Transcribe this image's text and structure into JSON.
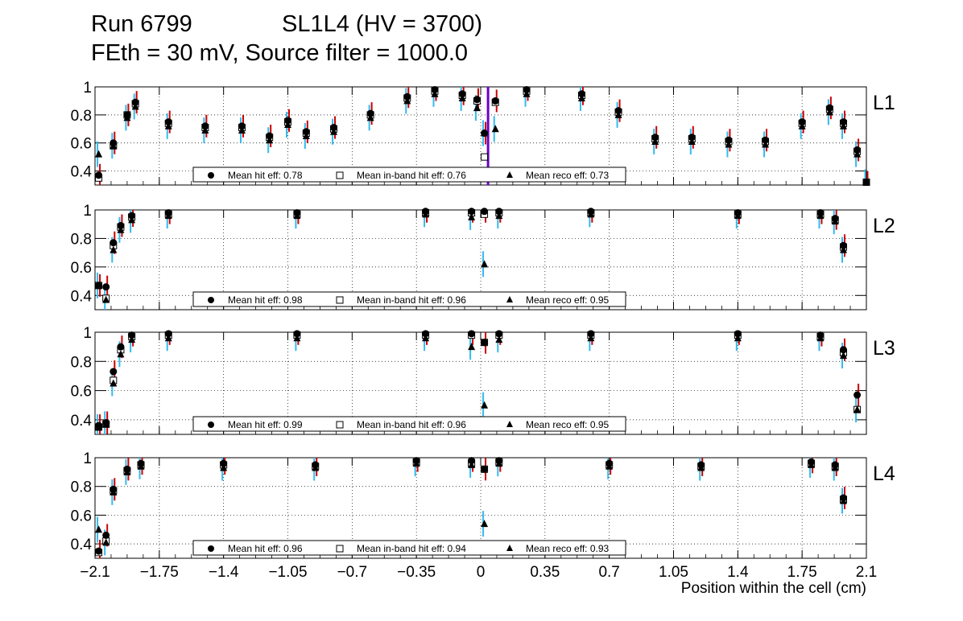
{
  "header": {
    "run_label": "Run 6799",
    "chamber_label": "SL1L4 (HV = 3700)",
    "settings_label": "FEth = 30 mV, Source filter = 1000.0"
  },
  "colors": {
    "hit_error": "#cc0000",
    "reco_error": "#33bbee",
    "highlight": "#6a00c8",
    "grid": "#000000"
  },
  "chart_data": {
    "type": "scatter",
    "xlabel": "Position within the cell (cm)",
    "xlim": [
      -2.1,
      2.1
    ],
    "ylim": [
      0.3,
      1.0
    ],
    "x_ticks": [
      "−2.1",
      "−1.75",
      "−1.4",
      "−1.05",
      "−0.7",
      "−0.35",
      "0",
      "0.35",
      "0.7",
      "1.05",
      "1.4",
      "1.75",
      "2.1"
    ],
    "x_tick_values": [
      -2.1,
      -1.75,
      -1.4,
      -1.05,
      -0.7,
      -0.35,
      0,
      0.35,
      0.7,
      1.05,
      1.4,
      1.75,
      2.1
    ],
    "y_ticks": [
      "0.4",
      "0.6",
      "0.8",
      "1"
    ],
    "y_tick_values": [
      0.4,
      0.6,
      0.8,
      1.0
    ],
    "grid": true,
    "legend_labels": {
      "hit": "Mean hit  eff:",
      "inband": "Mean in-band hit eff:",
      "reco": "Mean reco eff:"
    },
    "panels": [
      {
        "name": "L1",
        "mean_hit_eff": "0.78",
        "mean_inband_eff": "0.76",
        "mean_reco_eff": "0.73",
        "points": [
          {
            "x": -2.08,
            "hit": 0.37,
            "inband": 0.35,
            "reco": 0.52
          },
          {
            "x": -2.0,
            "hit": 0.6,
            "inband": 0.58,
            "reco": 0.58
          },
          {
            "x": -1.925,
            "hit": 0.8,
            "inband": 0.8,
            "reco": 0.78
          },
          {
            "x": -1.88,
            "hit": 0.89,
            "inband": 0.88,
            "reco": 0.86
          },
          {
            "x": -1.7,
            "hit": 0.75,
            "inband": 0.74,
            "reco": 0.72
          },
          {
            "x": -1.5,
            "hit": 0.72,
            "inband": 0.71,
            "reco": 0.69
          },
          {
            "x": -1.3,
            "hit": 0.72,
            "inband": 0.71,
            "reco": 0.69
          },
          {
            "x": -1.15,
            "hit": 0.65,
            "inband": 0.64,
            "reco": 0.62
          },
          {
            "x": -1.05,
            "hit": 0.76,
            "inband": 0.75,
            "reco": 0.73
          },
          {
            "x": -0.95,
            "hit": 0.68,
            "inband": 0.67,
            "reco": 0.65
          },
          {
            "x": -0.8,
            "hit": 0.71,
            "inband": 0.7,
            "reco": 0.68
          },
          {
            "x": -0.6,
            "hit": 0.81,
            "inband": 0.8,
            "reco": 0.78
          },
          {
            "x": -0.4,
            "hit": 0.93,
            "inband": 0.92,
            "reco": 0.9
          },
          {
            "x": -0.25,
            "hit": 0.98,
            "inband": 0.97,
            "reco": 0.95
          },
          {
            "x": -0.1,
            "hit": 0.95,
            "inband": 0.94,
            "reco": 0.92
          },
          {
            "x": -0.02,
            "hit": 0.91,
            "inband": 0.9,
            "reco": 0.85
          },
          {
            "x": 0.02,
            "hit": 0.67,
            "inband": 0.5,
            "reco": 0.67
          },
          {
            "x": 0.08,
            "hit": 0.9,
            "inband": 0.89,
            "reco": 0.7
          },
          {
            "x": 0.25,
            "hit": 0.98,
            "inband": 0.97,
            "reco": 0.95
          },
          {
            "x": 0.55,
            "hit": 0.95,
            "inband": 0.94,
            "reco": 0.92
          },
          {
            "x": 0.75,
            "hit": 0.83,
            "inband": 0.82,
            "reco": 0.8
          },
          {
            "x": 0.95,
            "hit": 0.64,
            "inband": 0.63,
            "reco": 0.61
          },
          {
            "x": 1.15,
            "hit": 0.64,
            "inband": 0.63,
            "reco": 0.61
          },
          {
            "x": 1.35,
            "hit": 0.62,
            "inband": 0.61,
            "reco": 0.59
          },
          {
            "x": 1.55,
            "hit": 0.62,
            "inband": 0.61,
            "reco": 0.59
          },
          {
            "x": 1.75,
            "hit": 0.75,
            "inband": 0.74,
            "reco": 0.72
          },
          {
            "x": 1.9,
            "hit": 0.85,
            "inband": 0.84,
            "reco": 0.82
          },
          {
            "x": 1.975,
            "hit": 0.75,
            "inband": 0.74,
            "reco": 0.72
          },
          {
            "x": 2.05,
            "hit": 0.55,
            "inband": 0.54,
            "reco": 0.52
          },
          {
            "x": 2.1,
            "hit": 0.32,
            "inband": 0.32,
            "reco": 0.32
          }
        ]
      },
      {
        "name": "L2",
        "mean_hit_eff": "0.98",
        "mean_inband_eff": "0.96",
        "mean_reco_eff": "0.95",
        "points": [
          {
            "x": -2.08,
            "hit": 0.47,
            "inband": 0.47,
            "reco": 0.47
          },
          {
            "x": -2.04,
            "hit": 0.46,
            "inband": 0.38,
            "reco": 0.37
          },
          {
            "x": -2.0,
            "hit": 0.77,
            "inband": 0.75,
            "reco": 0.72
          },
          {
            "x": -1.96,
            "hit": 0.89,
            "inband": 0.88,
            "reco": 0.86
          },
          {
            "x": -1.9,
            "hit": 0.96,
            "inband": 0.95,
            "reco": 0.93
          },
          {
            "x": -1.7,
            "hit": 0.98,
            "inband": 0.97,
            "reco": 0.96
          },
          {
            "x": -1.0,
            "hit": 0.98,
            "inband": 0.97,
            "reco": 0.96
          },
          {
            "x": -0.3,
            "hit": 0.99,
            "inband": 0.98,
            "reco": 0.97
          },
          {
            "x": -0.05,
            "hit": 0.99,
            "inband": 0.98,
            "reco": 0.95
          },
          {
            "x": 0.02,
            "hit": 0.99,
            "inband": 0.97,
            "reco": 0.62
          },
          {
            "x": 0.1,
            "hit": 0.99,
            "inband": 0.98,
            "reco": 0.96
          },
          {
            "x": 0.6,
            "hit": 0.99,
            "inband": 0.98,
            "reco": 0.97
          },
          {
            "x": 1.4,
            "hit": 0.98,
            "inband": 0.97,
            "reco": 0.96
          },
          {
            "x": 1.85,
            "hit": 0.98,
            "inband": 0.97,
            "reco": 0.96
          },
          {
            "x": 1.93,
            "hit": 0.94,
            "inband": 0.93,
            "reco": 0.92
          },
          {
            "x": 1.975,
            "hit": 0.75,
            "inband": 0.74,
            "reco": 0.72
          }
        ]
      },
      {
        "name": "L3",
        "mean_hit_eff": "0.99",
        "mean_inband_eff": "0.96",
        "mean_reco_eff": "0.95",
        "points": [
          {
            "x": -2.08,
            "hit": 0.36,
            "inband": 0.35,
            "reco": 0.35
          },
          {
            "x": -2.04,
            "hit": 0.38,
            "inband": 0.37,
            "reco": 0.37
          },
          {
            "x": -2.0,
            "hit": 0.73,
            "inband": 0.67,
            "reco": 0.65
          },
          {
            "x": -1.96,
            "hit": 0.9,
            "inband": 0.88,
            "reco": 0.85
          },
          {
            "x": -1.9,
            "hit": 0.98,
            "inband": 0.97,
            "reco": 0.95
          },
          {
            "x": -1.7,
            "hit": 0.99,
            "inband": 0.98,
            "reco": 0.96
          },
          {
            "x": -1.0,
            "hit": 0.99,
            "inband": 0.98,
            "reco": 0.96
          },
          {
            "x": -0.3,
            "hit": 0.99,
            "inband": 0.98,
            "reco": 0.96
          },
          {
            "x": -0.05,
            "hit": 0.99,
            "inband": 0.98,
            "reco": 0.9
          },
          {
            "x": 0.02,
            "hit": 0.93,
            "inband": 0.93,
            "reco": 0.5
          },
          {
            "x": 0.1,
            "hit": 0.99,
            "inband": 0.98,
            "reco": 0.95
          },
          {
            "x": 0.6,
            "hit": 0.99,
            "inband": 0.98,
            "reco": 0.96
          },
          {
            "x": 1.4,
            "hit": 0.99,
            "inband": 0.98,
            "reco": 0.96
          },
          {
            "x": 1.85,
            "hit": 0.98,
            "inband": 0.97,
            "reco": 0.96
          },
          {
            "x": 1.975,
            "hit": 0.88,
            "inband": 0.86,
            "reco": 0.84
          },
          {
            "x": 2.05,
            "hit": 0.57,
            "inband": 0.47,
            "reco": 0.47
          }
        ]
      },
      {
        "name": "L4",
        "mean_hit_eff": "0.96",
        "mean_inband_eff": "0.94",
        "mean_reco_eff": "0.93",
        "points": [
          {
            "x": -2.08,
            "hit": 0.35,
            "inband": 0.34,
            "reco": 0.5
          },
          {
            "x": -2.04,
            "hit": 0.46,
            "inband": 0.42,
            "reco": 0.41
          },
          {
            "x": -2.0,
            "hit": 0.78,
            "inband": 0.77,
            "reco": 0.76
          },
          {
            "x": -1.925,
            "hit": 0.92,
            "inband": 0.91,
            "reco": 0.9
          },
          {
            "x": -1.85,
            "hit": 0.96,
            "inband": 0.95,
            "reco": 0.94
          },
          {
            "x": -1.4,
            "hit": 0.96,
            "inband": 0.95,
            "reco": 0.93
          },
          {
            "x": -0.9,
            "hit": 0.95,
            "inband": 0.94,
            "reco": 0.93
          },
          {
            "x": -0.35,
            "hit": 0.98,
            "inband": 0.97,
            "reco": 0.96
          },
          {
            "x": -0.05,
            "hit": 0.98,
            "inband": 0.96,
            "reco": 0.95
          },
          {
            "x": 0.02,
            "hit": 0.92,
            "inband": 0.92,
            "reco": 0.54
          },
          {
            "x": 0.1,
            "hit": 0.98,
            "inband": 0.97,
            "reco": 0.96
          },
          {
            "x": 0.7,
            "hit": 0.96,
            "inband": 0.95,
            "reco": 0.94
          },
          {
            "x": 1.2,
            "hit": 0.95,
            "inband": 0.94,
            "reco": 0.93
          },
          {
            "x": 1.8,
            "hit": 0.97,
            "inband": 0.96,
            "reco": 0.95
          },
          {
            "x": 1.93,
            "hit": 0.95,
            "inband": 0.94,
            "reco": 0.93
          },
          {
            "x": 1.975,
            "hit": 0.72,
            "inband": 0.71,
            "reco": 0.7
          }
        ]
      }
    ]
  }
}
